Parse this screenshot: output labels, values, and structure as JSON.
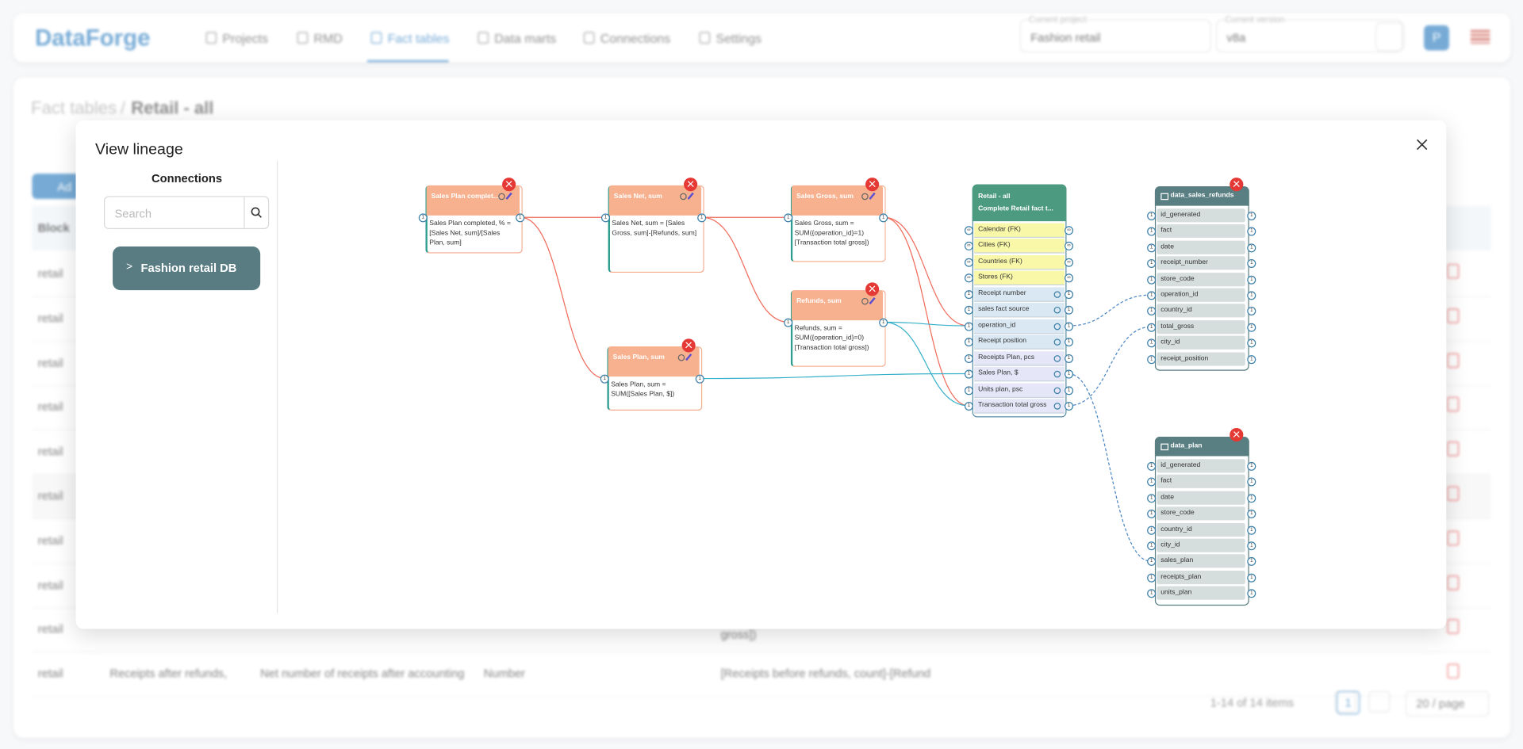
{
  "header": {
    "logo": "DataForge",
    "nav": [
      "Projects",
      "RMD",
      "Fact tables",
      "Data marts",
      "Connections",
      "Settings"
    ],
    "project_label": "Current project",
    "project": "Fashion retail",
    "version_label": "Current version",
    "version": "v8a",
    "avatar": "P"
  },
  "breadcrumb": [
    "Fact tables",
    "Retail - all"
  ],
  "table": {
    "add_button": "Ad",
    "header": [
      "Block"
    ],
    "rows": [
      [
        "retail"
      ],
      [
        "retail"
      ],
      [
        "retail"
      ],
      [
        "retail"
      ],
      [
        "retail"
      ],
      [
        "retail"
      ],
      [
        "retail"
      ],
      [
        "retail"
      ],
      [
        "retail",
        "gross])"
      ],
      [
        "retail",
        "Receipts after refunds,",
        "Net number of receipts after accounting",
        "Number",
        "[Receipts before refunds, count]-[Refund"
      ]
    ]
  },
  "pagination": {
    "summary": "1-14 of 14 items",
    "page": "1",
    "page_size": "20 / page"
  },
  "modal": {
    "title": "View lineage",
    "sidebar_title": "Connections",
    "search_placeholder": "Search",
    "connection": "Fashion retail DB"
  },
  "lineage": {
    "port_label": "1",
    "fk_port_label": "∞",
    "measures": [
      {
        "title": "Sales Plan complet...",
        "formula": "Sales Plan completed, % = [Sales Net, sum]/[Sales Plan, sum]"
      },
      {
        "title": "Sales Net, sum",
        "formula": "Sales Net, sum = [Sales Gross, sum]-[Refunds, sum]"
      },
      {
        "title": "Sales Gross, sum",
        "formula": "Sales Gross, sum = SUM({operation_id}=1) [Transaction total gross])"
      },
      {
        "title": "Refunds, sum",
        "formula": "Refunds, sum = SUM({operation_id}=0) [Transaction total gross])"
      },
      {
        "title": "Sales Plan, sum",
        "formula": "Sales Plan, sum = SUM([Sales Plan, $])"
      }
    ],
    "fact_table": {
      "title": "Retail - all",
      "subtitle": "Complete Retail fact t...",
      "fields": [
        "Calendar (FK)",
        "Cities (FK)",
        "Countries (FK)",
        "Stores (FK)",
        "Receipt number",
        "sales fact source",
        "operation_id",
        "Receipt position",
        "Receipts Plan, pcs",
        "Sales Plan, $",
        "Units plan, psc",
        "Transaction total gross"
      ]
    },
    "tables": [
      {
        "name": "data_sales_refunds",
        "fields": [
          "id_generated",
          "fact",
          "date",
          "receipt_number",
          "store_code",
          "operation_id",
          "country_id",
          "total_gross",
          "city_id",
          "receipt_position"
        ]
      },
      {
        "name": "data_plan",
        "fields": [
          "id_generated",
          "fact",
          "date",
          "store_code",
          "country_id",
          "city_id",
          "sales_plan",
          "receipts_plan",
          "units_plan"
        ]
      }
    ]
  }
}
